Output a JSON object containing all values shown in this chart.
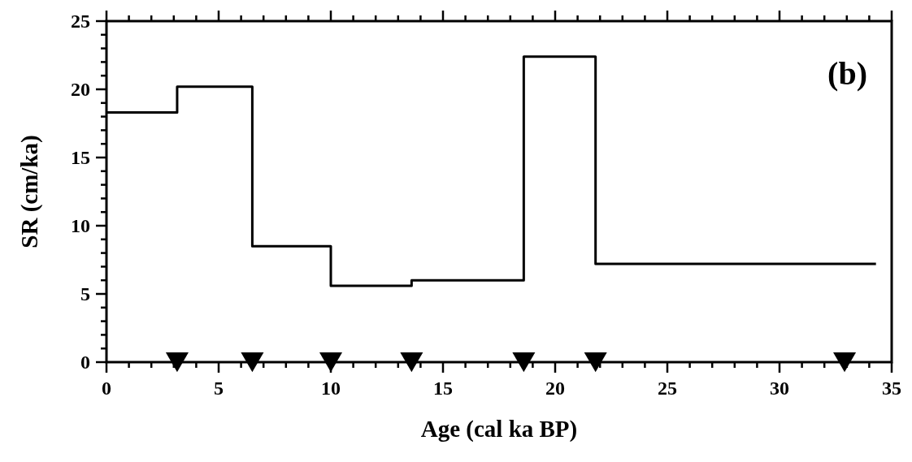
{
  "chart_data": {
    "type": "step",
    "xlabel": "Age (cal ka BP)",
    "ylabel": "SR (cm/ka)",
    "annotations": [
      "(b)"
    ],
    "xlim": [
      0,
      35
    ],
    "ylim": [
      0,
      25
    ],
    "xticks": [
      0,
      {
        "value": 1,
        "label": null
      },
      {
        "value": 2,
        "label": null
      },
      {
        "value": 3,
        "label": null
      },
      {
        "value": 4,
        "label": null
      },
      5,
      {
        "value": 6,
        "label": null
      },
      {
        "value": 7,
        "label": null
      },
      {
        "value": 8,
        "label": null
      },
      {
        "value": 9,
        "label": null
      },
      10,
      {
        "value": 11,
        "label": null
      },
      {
        "value": 12,
        "label": null
      },
      {
        "value": 13,
        "label": null
      },
      {
        "value": 14,
        "label": null
      },
      15,
      {
        "value": 16,
        "label": null
      },
      {
        "value": 17,
        "label": null
      },
      {
        "value": 18,
        "label": null
      },
      {
        "value": 19,
        "label": null
      },
      20,
      {
        "value": 21,
        "label": null
      },
      {
        "value": 22,
        "label": null
      },
      {
        "value": 23,
        "label": null
      },
      {
        "value": 24,
        "label": null
      },
      25,
      {
        "value": 26,
        "label": null
      },
      {
        "value": 27,
        "label": null
      },
      {
        "value": 28,
        "label": null
      },
      {
        "value": 29,
        "label": null
      },
      30,
      {
        "value": 31,
        "label": null
      },
      {
        "value": 32,
        "label": null
      },
      {
        "value": 33,
        "label": null
      },
      {
        "value": 34,
        "label": null
      },
      35
    ],
    "yticks": [
      0,
      {
        "value": 1,
        "label": null
      },
      {
        "value": 2,
        "label": null
      },
      {
        "value": 3,
        "label": null
      },
      {
        "value": 4,
        "label": null
      },
      5,
      {
        "value": 6,
        "label": null
      },
      {
        "value": 7,
        "label": null
      },
      {
        "value": 8,
        "label": null
      },
      {
        "value": 9,
        "label": null
      },
      10,
      {
        "value": 11,
        "label": null
      },
      {
        "value": 12,
        "label": null
      },
      {
        "value": 13,
        "label": null
      },
      {
        "value": 14,
        "label": null
      },
      15,
      {
        "value": 16,
        "label": null
      },
      {
        "value": 17,
        "label": null
      },
      {
        "value": 18,
        "label": null
      },
      {
        "value": 19,
        "label": null
      },
      20,
      {
        "value": 21,
        "label": null
      },
      {
        "value": 22,
        "label": null
      },
      {
        "value": 23,
        "label": null
      },
      {
        "value": 24,
        "label": null
      },
      25
    ],
    "grid": false,
    "series": [
      {
        "color": "#000000",
        "x": [
          0,
          3.15,
          6.5,
          10.0,
          13.6,
          18.6,
          21.8,
          34.3
        ],
        "values": [
          18.3,
          20.2,
          8.5,
          5.6,
          6.0,
          22.4,
          7.2,
          7.2
        ]
      },
      {
        "type": "scatter",
        "color": "#000000",
        "marker": "triangle",
        "x": [
          3.15,
          6.5,
          10.0,
          13.6,
          18.6,
          21.8,
          32.9
        ],
        "values": [
          0,
          0,
          0,
          0,
          0,
          0,
          0
        ]
      }
    ]
  }
}
